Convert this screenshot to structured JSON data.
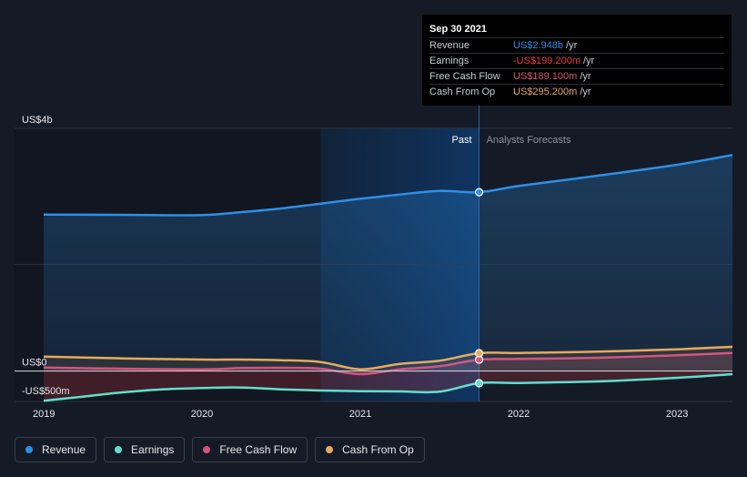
{
  "tooltip": {
    "date": "Sep 30 2021",
    "rows": [
      {
        "label": "Revenue",
        "value": "US$2.948b",
        "unit": "/yr",
        "color": "#2e8fe6"
      },
      {
        "label": "Earnings",
        "value": "-US$199.200m",
        "unit": "/yr",
        "color": "#e8394a"
      },
      {
        "label": "Free Cash Flow",
        "value": "US$189.100m",
        "unit": "/yr",
        "color": "#d6547c"
      },
      {
        "label": "Cash From Op",
        "value": "US$295.200m",
        "unit": "/yr",
        "color": "#e8a95b"
      }
    ]
  },
  "legend": [
    {
      "label": "Revenue",
      "color": "#2e8fe6"
    },
    {
      "label": "Earnings",
      "color": "#5fe0cc"
    },
    {
      "label": "Free Cash Flow",
      "color": "#d6547c"
    },
    {
      "label": "Cash From Op",
      "color": "#e8a95b"
    }
  ],
  "chart_data": {
    "type": "line",
    "y_unit": "US$ millions",
    "ylim": [
      -500,
      4000
    ],
    "y_tick_labels": [
      {
        "value": 4000,
        "label": "US$4b"
      },
      {
        "value": 0,
        "label": "US$0"
      },
      {
        "value": -500,
        "label": "-US$500m"
      }
    ],
    "xlim": [
      2019.0,
      2023.35
    ],
    "x_tick_labels": [
      "2019",
      "2020",
      "2021",
      "2022",
      "2023"
    ],
    "x_ticks": [
      2019,
      2020,
      2021,
      2022,
      2023
    ],
    "divider_x": 2021.75,
    "highlight_x_start": 2020.75,
    "past_label": "Past",
    "forecast_label": "Analysts Forecasts",
    "series": [
      {
        "name": "Revenue",
        "color": "#2e8fe6",
        "x": [
          2019.0,
          2019.5,
          2020.0,
          2020.25,
          2020.5,
          2020.75,
          2021.0,
          2021.25,
          2021.5,
          2021.75,
          2022.0,
          2022.5,
          2023.0,
          2023.35
        ],
        "values": [
          2580,
          2575,
          2570,
          2620,
          2680,
          2760,
          2840,
          2910,
          2970,
          2948,
          3050,
          3220,
          3400,
          3560
        ],
        "marker_at": 2021.75,
        "marker_value": 2948
      },
      {
        "name": "Earnings",
        "color": "#5fe0cc",
        "x": [
          2019.0,
          2019.25,
          2019.5,
          2019.75,
          2020.0,
          2020.25,
          2020.5,
          2020.75,
          2021.0,
          2021.25,
          2021.5,
          2021.75,
          2022.0,
          2022.5,
          2023.0,
          2023.35
        ],
        "values": [
          -490,
          -420,
          -350,
          -300,
          -280,
          -270,
          -300,
          -320,
          -330,
          -335,
          -340,
          -199,
          -195,
          -170,
          -110,
          -50
        ],
        "marker_at": 2021.75,
        "marker_value": -199.2
      },
      {
        "name": "Free Cash Flow",
        "color": "#d6547c",
        "x": [
          2019.0,
          2019.5,
          2020.0,
          2020.25,
          2020.5,
          2020.75,
          2021.0,
          2021.25,
          2021.5,
          2021.75,
          2022.0,
          2022.5,
          2023.0,
          2023.35
        ],
        "values": [
          60,
          40,
          30,
          50,
          55,
          40,
          -50,
          30,
          80,
          189,
          200,
          220,
          260,
          300
        ],
        "marker_at": 2021.75,
        "marker_value": 189.1
      },
      {
        "name": "Cash From Op",
        "color": "#e8a95b",
        "x": [
          2019.0,
          2019.5,
          2020.0,
          2020.25,
          2020.5,
          2020.75,
          2021.0,
          2021.25,
          2021.5,
          2021.75,
          2022.0,
          2022.5,
          2023.0,
          2023.35
        ],
        "values": [
          240,
          210,
          190,
          190,
          180,
          150,
          30,
          120,
          170,
          295,
          300,
          320,
          360,
          400
        ],
        "marker_at": 2021.75,
        "marker_value": 295.2
      }
    ]
  }
}
